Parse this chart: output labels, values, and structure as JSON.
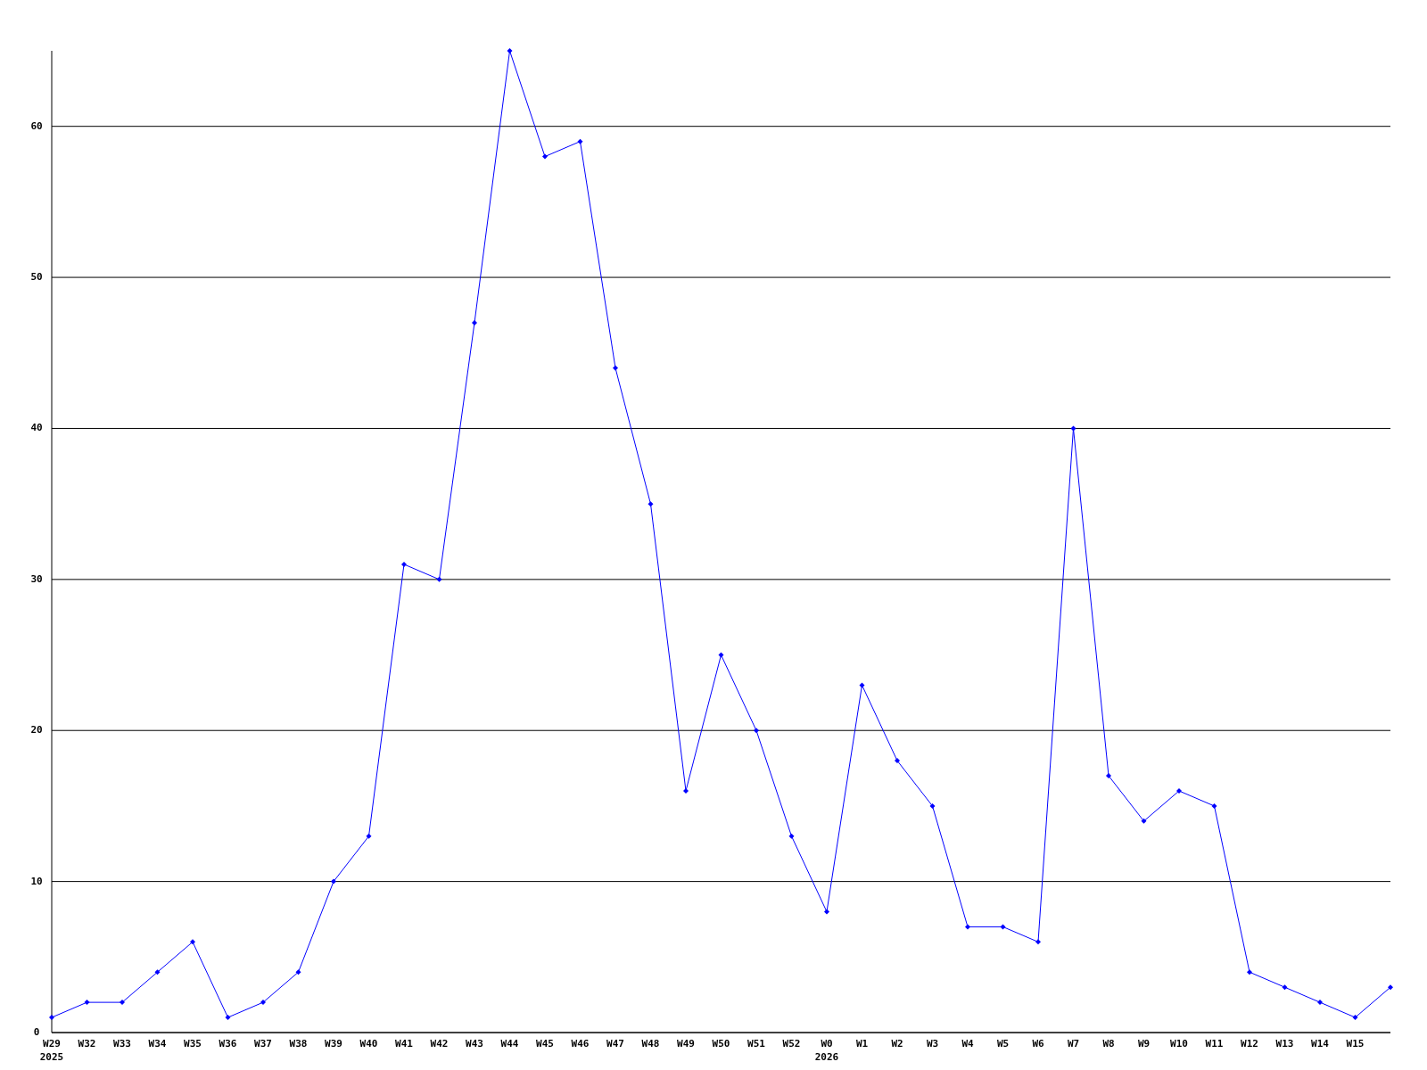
{
  "chart_data": {
    "type": "line",
    "categories": [
      "W29\n2025",
      "W32",
      "W33",
      "W34",
      "W35",
      "W36",
      "W37",
      "W38",
      "W39",
      "W40",
      "W41",
      "W42",
      "W43",
      "W44",
      "W45",
      "W46",
      "W47",
      "W48",
      "W49",
      "W50",
      "W51",
      "W52",
      "W0\n2026",
      "W1",
      "W2",
      "W3",
      "W4",
      "W5",
      "W6",
      "W7",
      "W8",
      "W9",
      "W10",
      "W11",
      "W12",
      "W13",
      "W14",
      "W15",
      null
    ],
    "series": [
      {
        "color": "#0000ff",
        "values": [
          1,
          2,
          2,
          4,
          6,
          1,
          2,
          4,
          10,
          13,
          31,
          30,
          47,
          65,
          58,
          59,
          44,
          35,
          16,
          25,
          20,
          13,
          8,
          23,
          18,
          15,
          7,
          7,
          6,
          40,
          17,
          14,
          16,
          15,
          4,
          3,
          2,
          1,
          3
        ]
      }
    ],
    "ylim": [
      0,
      65
    ],
    "yticks": [
      0,
      10,
      20,
      30,
      40,
      50,
      60
    ],
    "grid": "y",
    "marker": "diamond",
    "line_style": "solid"
  }
}
